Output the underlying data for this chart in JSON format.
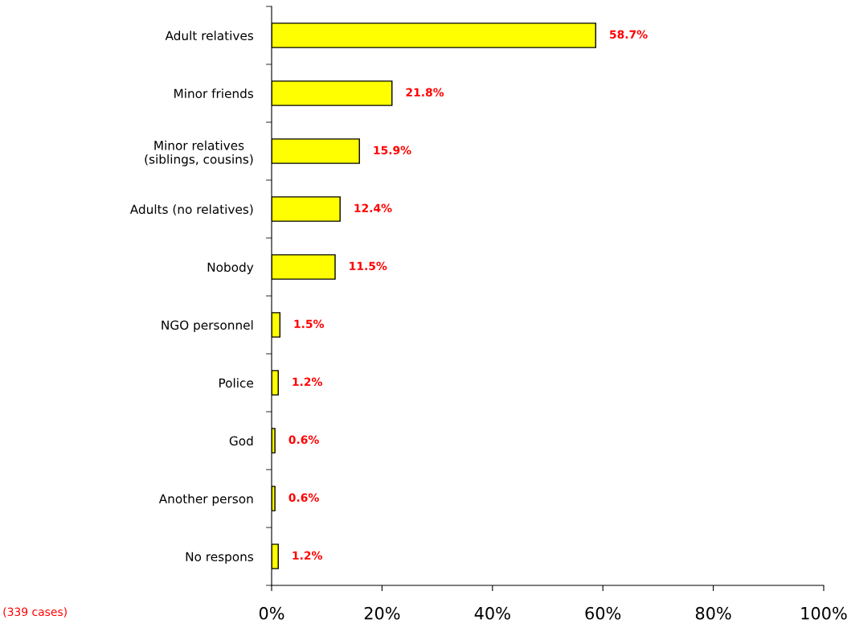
{
  "chart_data": {
    "type": "bar",
    "orientation": "horizontal",
    "categories": [
      "Adult relatives",
      "Minor friends",
      "Minor relatives\n(siblings, cousins)",
      "Adults (no relatives)",
      "Nobody",
      "NGO personnel",
      "Police",
      "God",
      "Another person",
      "No respons"
    ],
    "values": [
      58.7,
      21.8,
      15.9,
      12.4,
      11.5,
      1.5,
      1.2,
      0.6,
      0.6,
      1.2
    ],
    "value_labels": [
      "58.7%",
      "21.8%",
      "15.9%",
      "12.4%",
      "11.5%",
      "1.5%",
      "1.2%",
      "0.6%",
      "0.6%",
      "1.2%"
    ],
    "color": "#ffff00",
    "xlim": [
      0,
      100
    ],
    "xticks": [
      {
        "value": 0,
        "label": "0%"
      },
      {
        "value": 20,
        "label": "20%"
      },
      {
        "value": 40,
        "label": "40%"
      },
      {
        "value": 60,
        "label": "60%"
      },
      {
        "value": 80,
        "label": "80%"
      },
      {
        "value": 100,
        "label": "100%"
      }
    ],
    "grid": false,
    "annotations": [
      "(339 cases)"
    ]
  }
}
